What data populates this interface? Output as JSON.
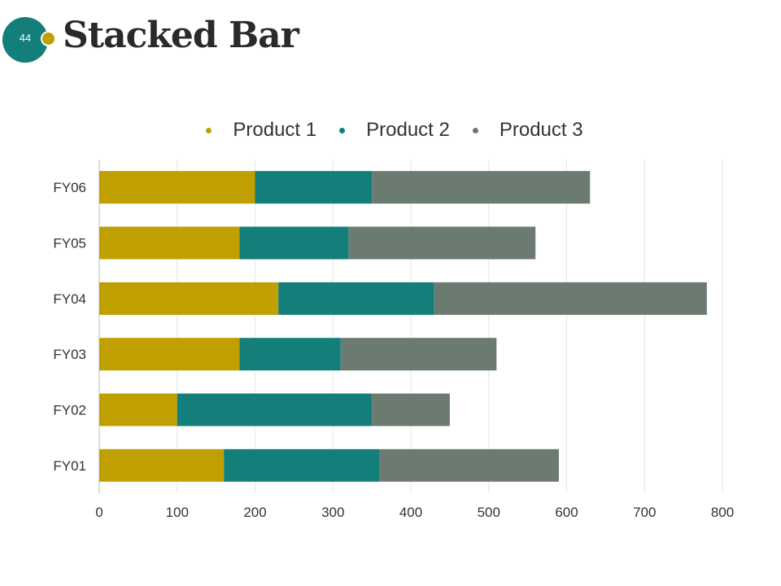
{
  "slide": {
    "number": "44",
    "title": "Stacked Bar"
  },
  "colors": {
    "badge": "#137e7a",
    "dot": "#c09f00",
    "grid": "#e6e6e6",
    "axis": "#bfbfbf"
  },
  "chart_data": {
    "type": "bar",
    "orientation": "horizontal",
    "stacked": true,
    "title": "",
    "xlabel": "",
    "ylabel": "",
    "xlim": [
      0,
      800
    ],
    "x_ticks": [
      "0",
      "100",
      "200",
      "300",
      "400",
      "500",
      "600",
      "700",
      "800"
    ],
    "categories": [
      "FY06",
      "FY05",
      "FY04",
      "FY03",
      "FY02",
      "FY01"
    ],
    "legend_position": "top",
    "grid": true,
    "series": [
      {
        "name": "Product 1",
        "color": "#c09f00",
        "values": [
          200,
          180,
          230,
          180,
          100,
          160
        ]
      },
      {
        "name": "Product 2",
        "color": "#137e7a",
        "values": [
          150,
          140,
          200,
          130,
          250,
          200
        ]
      },
      {
        "name": "Product 3",
        "color": "#6c7b72",
        "values": [
          280,
          240,
          350,
          200,
          100,
          230
        ]
      }
    ]
  }
}
